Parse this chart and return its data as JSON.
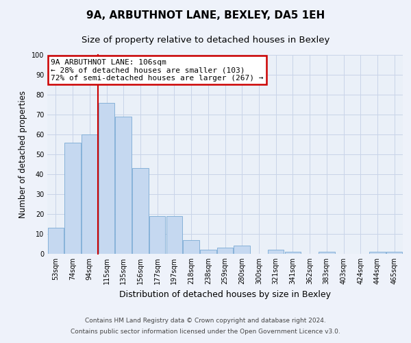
{
  "title": "9A, ARBUTHNOT LANE, BEXLEY, DA5 1EH",
  "subtitle": "Size of property relative to detached houses in Bexley",
  "xlabel": "Distribution of detached houses by size in Bexley",
  "ylabel": "Number of detached properties",
  "bar_labels": [
    "53sqm",
    "74sqm",
    "94sqm",
    "115sqm",
    "135sqm",
    "156sqm",
    "177sqm",
    "197sqm",
    "218sqm",
    "238sqm",
    "259sqm",
    "280sqm",
    "300sqm",
    "321sqm",
    "341sqm",
    "362sqm",
    "383sqm",
    "403sqm",
    "424sqm",
    "444sqm",
    "465sqm"
  ],
  "bar_values": [
    13,
    56,
    60,
    76,
    69,
    43,
    19,
    19,
    7,
    2,
    3,
    4,
    0,
    2,
    1,
    0,
    1,
    0,
    0,
    1,
    1
  ],
  "bar_color": "#c5d8f0",
  "bar_edge_color": "#7aaad4",
  "vline_color": "#cc0000",
  "annotation_box_text": "9A ARBUTHNOT LANE: 106sqm\n← 28% of detached houses are smaller (103)\n72% of semi-detached houses are larger (267) →",
  "ylim": [
    0,
    100
  ],
  "yticks": [
    0,
    10,
    20,
    30,
    40,
    50,
    60,
    70,
    80,
    90,
    100
  ],
  "bg_color": "#eef2fa",
  "plot_bg_color": "#eaf0f8",
  "grid_color": "#c8d4e8",
  "footer_line1": "Contains HM Land Registry data © Crown copyright and database right 2024.",
  "footer_line2": "Contains public sector information licensed under the Open Government Licence v3.0.",
  "title_fontsize": 11,
  "subtitle_fontsize": 9.5,
  "xlabel_fontsize": 9,
  "ylabel_fontsize": 8.5,
  "tick_fontsize": 7,
  "annotation_fontsize": 8,
  "footer_fontsize": 6.5
}
